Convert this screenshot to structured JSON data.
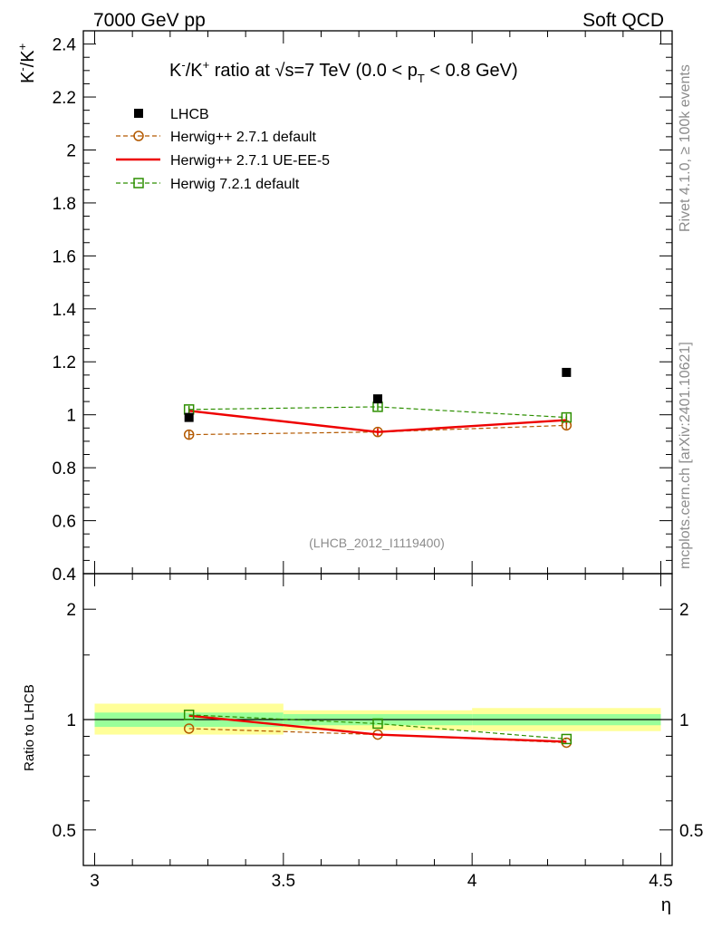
{
  "header": {
    "left": "7000 GeV pp",
    "right": "Soft QCD"
  },
  "side": {
    "rivet": "Rivet 4.1.0, ≥ 100k events",
    "mcplots": "mcplots.cern.ch [arXiv:2401.10621]"
  },
  "colors": {
    "data": "#000000",
    "herwig271_default": "#b35900",
    "herwig271_ueee5": "#ee0000",
    "herwig721_default": "#2d8f00",
    "band_inner": "#99ff99",
    "band_outer": "#ffff99"
  },
  "chart_data": [
    {
      "type": "line",
      "title": "K⁻/K⁺ ratio at √s=7 TeV (0.0 < pT < 0.8 GeV)",
      "title_parts": {
        "a": "K",
        "a_sup": "-",
        "b": "/K",
        "b_sup": "+",
        "c": " ratio at ",
        "sqrt": "√",
        "s": "s=7 TeV (0.0 < p",
        "sub": "T",
        "d": " < 0.8 GeV)"
      },
      "ylabel": "K⁻/K⁺",
      "ylabel_parts": {
        "a": "K",
        "a_sup": "-",
        "b": "/K",
        "b_sup": "+"
      },
      "ylim": [
        0.4,
        2.45
      ],
      "xlim": [
        2.97,
        4.53
      ],
      "yticks": [
        "0.4",
        "0.6",
        "0.8",
        "1",
        "1.2",
        "1.4",
        "1.6",
        "1.8",
        "2",
        "2.2",
        "2.4"
      ],
      "watermark": "(LHCB_2012_I1119400)",
      "x": [
        3.25,
        3.75,
        4.25
      ],
      "x_bins": [
        [
          3.0,
          3.5
        ],
        [
          3.5,
          4.0
        ],
        [
          4.0,
          4.5
        ]
      ],
      "series": [
        {
          "name": "LHCB",
          "style": "data",
          "values": [
            0.99,
            1.06,
            1.16
          ],
          "errors": [
            0.01,
            0.01,
            0.01
          ]
        },
        {
          "name": "Herwig++ 2.7.1 default",
          "style": "circle-dashed",
          "values": [
            0.925,
            0.935,
            0.96
          ],
          "errors": [
            0.015,
            0.01,
            0.01
          ]
        },
        {
          "name": "Herwig++ 2.7.1 UE-EE-5",
          "style": "solid",
          "values": [
            1.015,
            0.935,
            0.98
          ],
          "errors": [
            0.012,
            0.012,
            0.015
          ]
        },
        {
          "name": "Herwig 7.2.1 default",
          "style": "square-dashed",
          "values": [
            1.02,
            1.03,
            0.99
          ],
          "errors": [
            0.012,
            0.01,
            0.01
          ]
        }
      ]
    },
    {
      "type": "line",
      "ylabel": "Ratio to LHCB",
      "y_scale": "log",
      "ylim": [
        0.4,
        2.5
      ],
      "yticks": [
        "0.5",
        "1",
        "2"
      ],
      "xticks": [
        "3",
        "3.5",
        "4",
        "4.5"
      ],
      "xlabel": "η",
      "band_inner": [
        [
          0.955,
          1.045
        ],
        [
          0.965,
          1.035
        ],
        [
          0.965,
          1.035
        ]
      ],
      "band_outer": [
        [
          0.91,
          1.105
        ],
        [
          0.935,
          1.06
        ],
        [
          0.93,
          1.075
        ]
      ],
      "series": [
        {
          "name": "Herwig++ 2.7.1 default",
          "values": [
            0.945,
            0.91,
            0.865
          ]
        },
        {
          "name": "Herwig++ 2.7.1 UE-EE-5",
          "values": [
            1.025,
            0.91,
            0.87
          ]
        },
        {
          "name": "Herwig 7.2.1 default",
          "values": [
            1.03,
            0.975,
            0.885
          ]
        }
      ]
    }
  ]
}
